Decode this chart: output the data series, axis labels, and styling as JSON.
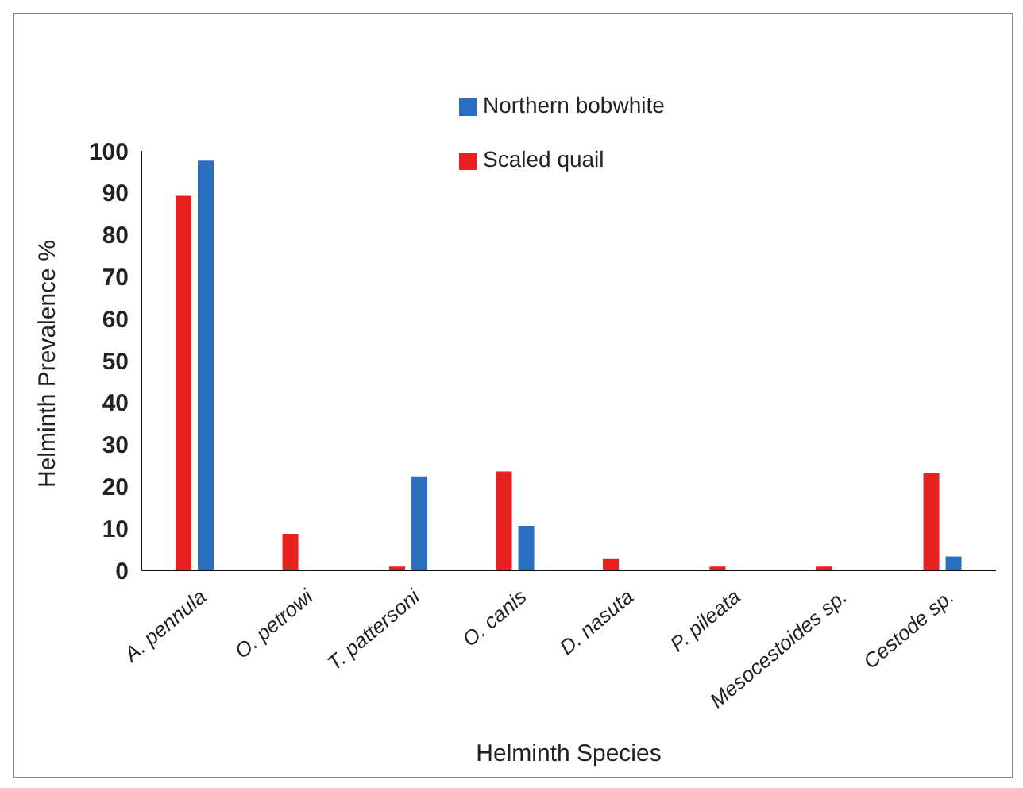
{
  "chart_data": {
    "type": "bar",
    "xlabel": "Helminth Species",
    "ylabel": "Helminth Prevalence %",
    "categories": [
      "A. pennula",
      "O. petrowi",
      "T. pattersoni",
      "O. canis",
      "D. nasuta",
      "P. pileata",
      "Mesocestoides sp.",
      "Cestode sp."
    ],
    "series": [
      {
        "name": "Scaled quail",
        "color": "#e82020",
        "values": [
          89.3,
          8.7,
          0.9,
          23.6,
          2.7,
          0.9,
          0.9,
          23.1
        ]
      },
      {
        "name": "Northern bobwhite",
        "color": "#2a6ebf",
        "values": [
          97.7,
          0,
          22.4,
          10.6,
          0,
          0,
          0,
          3.3
        ]
      }
    ],
    "ylim": [
      0,
      100
    ],
    "yticks": [
      0,
      10,
      20,
      30,
      40,
      50,
      60,
      70,
      80,
      90,
      100
    ],
    "grid": false,
    "legend": "top"
  }
}
